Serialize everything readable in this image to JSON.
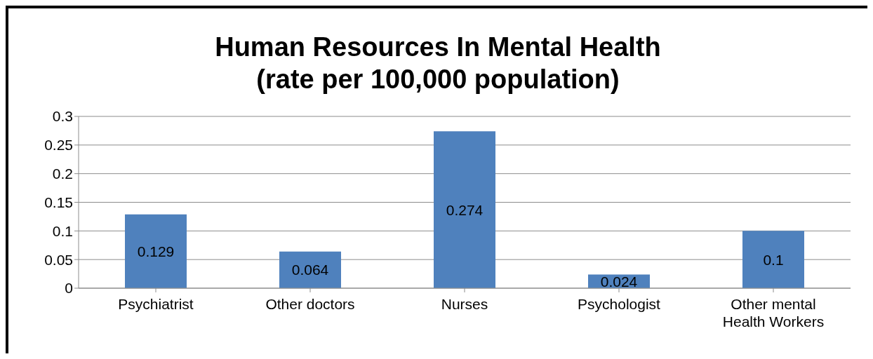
{
  "chart_data": {
    "type": "bar",
    "title": "Human Resources In Mental Health",
    "subtitle": "(rate per 100,000 population)",
    "categories": [
      "Psychiatrist",
      "Other doctors",
      "Nurses",
      "Psychologist",
      "Other mental Health Workers"
    ],
    "values": [
      0.129,
      0.064,
      0.274,
      0.024,
      0.1
    ],
    "color": "#4f81bd",
    "ylim": [
      0,
      0.3
    ],
    "yticks": [
      0,
      0.05,
      0.1,
      0.15,
      0.2,
      0.25,
      0.3
    ],
    "grid": "y",
    "data_labels": true
  }
}
